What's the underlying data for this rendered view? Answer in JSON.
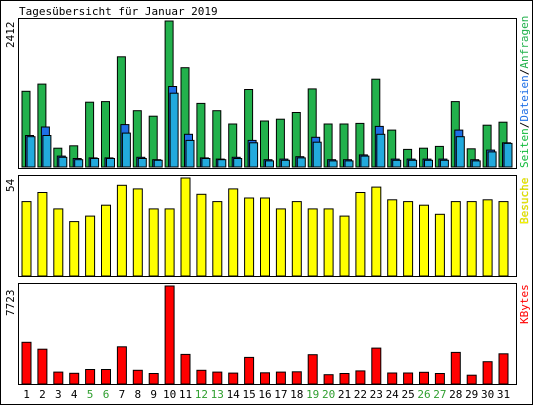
{
  "title": "Tagesübersicht für Januar 2019",
  "colors": {
    "background": "#ffffff",
    "border": "#000000",
    "pages": "#0FB93A",
    "files": "#1E6FE6",
    "hits": "#22B14C",
    "visits": "#FFFF00",
    "kbytes": "#FF0000",
    "weekend_label": "#2E9E2E"
  },
  "chart_data": [
    {
      "type": "bar",
      "panel": "top",
      "ymax_label": "2412",
      "series_labels": {
        "hits": "Anfragen",
        "files": "Dateien",
        "pages": "Seiten"
      },
      "separators": [
        "/",
        "/"
      ],
      "categories": [
        "1",
        "2",
        "3",
        "4",
        "5",
        "6",
        "7",
        "8",
        "9",
        "10",
        "11",
        "12",
        "13",
        "14",
        "15",
        "16",
        "17",
        "18",
        "19",
        "20",
        "21",
        "22",
        "23",
        "24",
        "25",
        "26",
        "27",
        "28",
        "29",
        "30",
        "31"
      ],
      "ylim": [
        0,
        2412
      ],
      "series": [
        {
          "name": "Anfragen",
          "values": [
            1250,
            1370,
            310,
            350,
            1070,
            1080,
            1820,
            930,
            840,
            2412,
            1640,
            1050,
            930,
            710,
            1280,
            760,
            790,
            900,
            1290,
            710,
            710,
            720,
            1450,
            610,
            290,
            310,
            340,
            1080,
            300,
            690,
            740
          ]
        },
        {
          "name": "Dateien",
          "values": [
            520,
            660,
            180,
            140,
            150,
            150,
            700,
            160,
            120,
            1330,
            540,
            150,
            130,
            160,
            440,
            120,
            130,
            170,
            490,
            120,
            120,
            200,
            670,
            130,
            130,
            130,
            130,
            610,
            120,
            280,
            400
          ]
        },
        {
          "name": "Seiten",
          "values": [
            500,
            520,
            160,
            120,
            140,
            140,
            560,
            140,
            110,
            1220,
            440,
            140,
            120,
            140,
            400,
            100,
            110,
            150,
            410,
            100,
            100,
            180,
            540,
            110,
            110,
            110,
            110,
            500,
            100,
            250,
            390
          ]
        }
      ]
    },
    {
      "type": "bar",
      "panel": "middle",
      "ymax_label": "54",
      "series_labels": {
        "visits": "Besuche"
      },
      "categories": [
        "1",
        "2",
        "3",
        "4",
        "5",
        "6",
        "7",
        "8",
        "9",
        "10",
        "11",
        "12",
        "13",
        "14",
        "15",
        "16",
        "17",
        "18",
        "19",
        "20",
        "21",
        "22",
        "23",
        "24",
        "25",
        "26",
        "27",
        "28",
        "29",
        "30",
        "31"
      ],
      "ylim": [
        0,
        54
      ],
      "series": [
        {
          "name": "Besuche",
          "values": [
            41,
            46,
            37,
            30,
            33,
            39,
            50,
            48,
            37,
            37,
            54,
            45,
            41,
            48,
            43,
            43,
            37,
            41,
            37,
            37,
            33,
            46,
            49,
            42,
            41,
            39,
            34,
            41,
            41,
            42,
            41
          ]
        }
      ]
    },
    {
      "type": "bar",
      "panel": "bottom",
      "ymax_label": "7723",
      "series_labels": {
        "kbytes": "KBytes"
      },
      "categories": [
        "1",
        "2",
        "3",
        "4",
        "5",
        "6",
        "7",
        "8",
        "9",
        "10",
        "11",
        "12",
        "13",
        "14",
        "15",
        "16",
        "17",
        "18",
        "19",
        "20",
        "21",
        "22",
        "23",
        "24",
        "25",
        "26",
        "27",
        "28",
        "29",
        "30",
        "31"
      ],
      "ylim": [
        0,
        7723
      ],
      "weekend_days": [
        "5",
        "6",
        "12",
        "13",
        "19",
        "20",
        "26",
        "27"
      ],
      "series": [
        {
          "name": "KBytes",
          "values": [
            3290,
            2740,
            940,
            840,
            1140,
            1140,
            2930,
            1080,
            830,
            7723,
            2330,
            1080,
            940,
            860,
            2100,
            880,
            940,
            960,
            2310,
            730,
            830,
            1030,
            2830,
            870,
            870,
            920,
            830,
            2490,
            690,
            1760,
            2380
          ]
        }
      ]
    }
  ]
}
